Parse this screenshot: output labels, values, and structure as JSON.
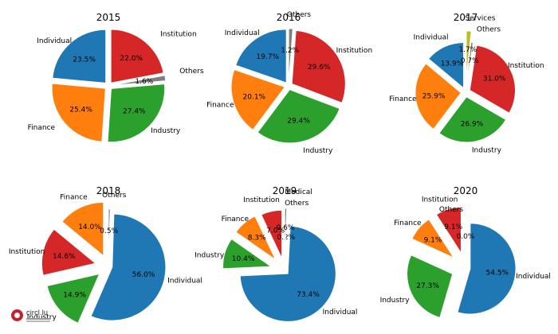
{
  "colors": {
    "Individual": "#1f77b4",
    "Finance": "#ff7f0e",
    "Industry": "#2ca02c",
    "Institution": "#d62728",
    "Others": "#7f7f7f",
    "Services": "#bcbd22",
    "Medical": "#7f7f7f"
  },
  "logo": {
    "text": "circl.lu"
  },
  "chart_data": [
    {
      "type": "pie",
      "title": "2015",
      "slices": [
        {
          "name": "Individual",
          "pct": 23.5,
          "pct_label": "23.5%"
        },
        {
          "name": "Finance",
          "pct": 25.4,
          "pct_label": "25.4%"
        },
        {
          "name": "Industry",
          "pct": 27.4,
          "pct_label": "27.4%"
        },
        {
          "name": "Others",
          "pct": 1.6,
          "pct_label": "1.6%"
        },
        {
          "name": "Institution",
          "pct": 22.0,
          "pct_label": "22.0%"
        }
      ]
    },
    {
      "type": "pie",
      "title": "2016",
      "slices": [
        {
          "name": "Individual",
          "pct": 19.7,
          "pct_label": "19.7%"
        },
        {
          "name": "Finance",
          "pct": 20.1,
          "pct_label": "20.1%"
        },
        {
          "name": "Industry",
          "pct": 29.4,
          "pct_label": "29.4%"
        },
        {
          "name": "Institution",
          "pct": 29.6,
          "pct_label": "29.6%"
        },
        {
          "name": "Others",
          "pct": 1.2,
          "pct_label": "1.2%"
        }
      ]
    },
    {
      "type": "pie",
      "title": "2017",
      "slices": [
        {
          "name": "Individual",
          "pct": 13.9,
          "pct_label": "13.9%"
        },
        {
          "name": "Finance",
          "pct": 25.9,
          "pct_label": "25.9%"
        },
        {
          "name": "Industry",
          "pct": 26.9,
          "pct_label": "26.9%"
        },
        {
          "name": "Institution",
          "pct": 31.0,
          "pct_label": "31.0%"
        },
        {
          "name": "Others",
          "pct": 0.7,
          "pct_label": "0.7%"
        },
        {
          "name": "Services",
          "pct": 1.7,
          "pct_label": "1.7%"
        }
      ]
    },
    {
      "type": "pie",
      "title": "2018",
      "slices": [
        {
          "name": "Finance",
          "pct": 14.0,
          "pct_label": "14.0%"
        },
        {
          "name": "Institution",
          "pct": 14.6,
          "pct_label": "14.6%"
        },
        {
          "name": "Industry",
          "pct": 14.9,
          "pct_label": "14.9%"
        },
        {
          "name": "Individual",
          "pct": 56.0,
          "pct_label": "56.0%"
        },
        {
          "name": "Others",
          "pct": 0.5,
          "pct_label": "0.5%"
        }
      ]
    },
    {
      "type": "pie",
      "title": "2019",
      "slices": [
        {
          "name": "Institution",
          "pct": 7.0,
          "pct_label": "7.0%"
        },
        {
          "name": "Finance",
          "pct": 8.3,
          "pct_label": "8.3%"
        },
        {
          "name": "Industry",
          "pct": 10.4,
          "pct_label": "10.4%"
        },
        {
          "name": "Individual",
          "pct": 73.4,
          "pct_label": "73.4%"
        },
        {
          "name": "Others",
          "pct": 0.2,
          "pct_label": "0.2%"
        },
        {
          "name": "Medical",
          "pct": 0.6,
          "pct_label": "0.6%"
        }
      ]
    },
    {
      "type": "pie",
      "title": "2020",
      "slices": [
        {
          "name": "Institution",
          "pct": 9.1,
          "pct_label": "9.1%"
        },
        {
          "name": "Finance",
          "pct": 9.1,
          "pct_label": "9.1%"
        },
        {
          "name": "Industry",
          "pct": 27.3,
          "pct_label": "27.3%"
        },
        {
          "name": "Individual",
          "pct": 54.5,
          "pct_label": "54.5%"
        },
        {
          "name": "Others",
          "pct": 0.0,
          "pct_label": "0.0%"
        }
      ]
    }
  ]
}
